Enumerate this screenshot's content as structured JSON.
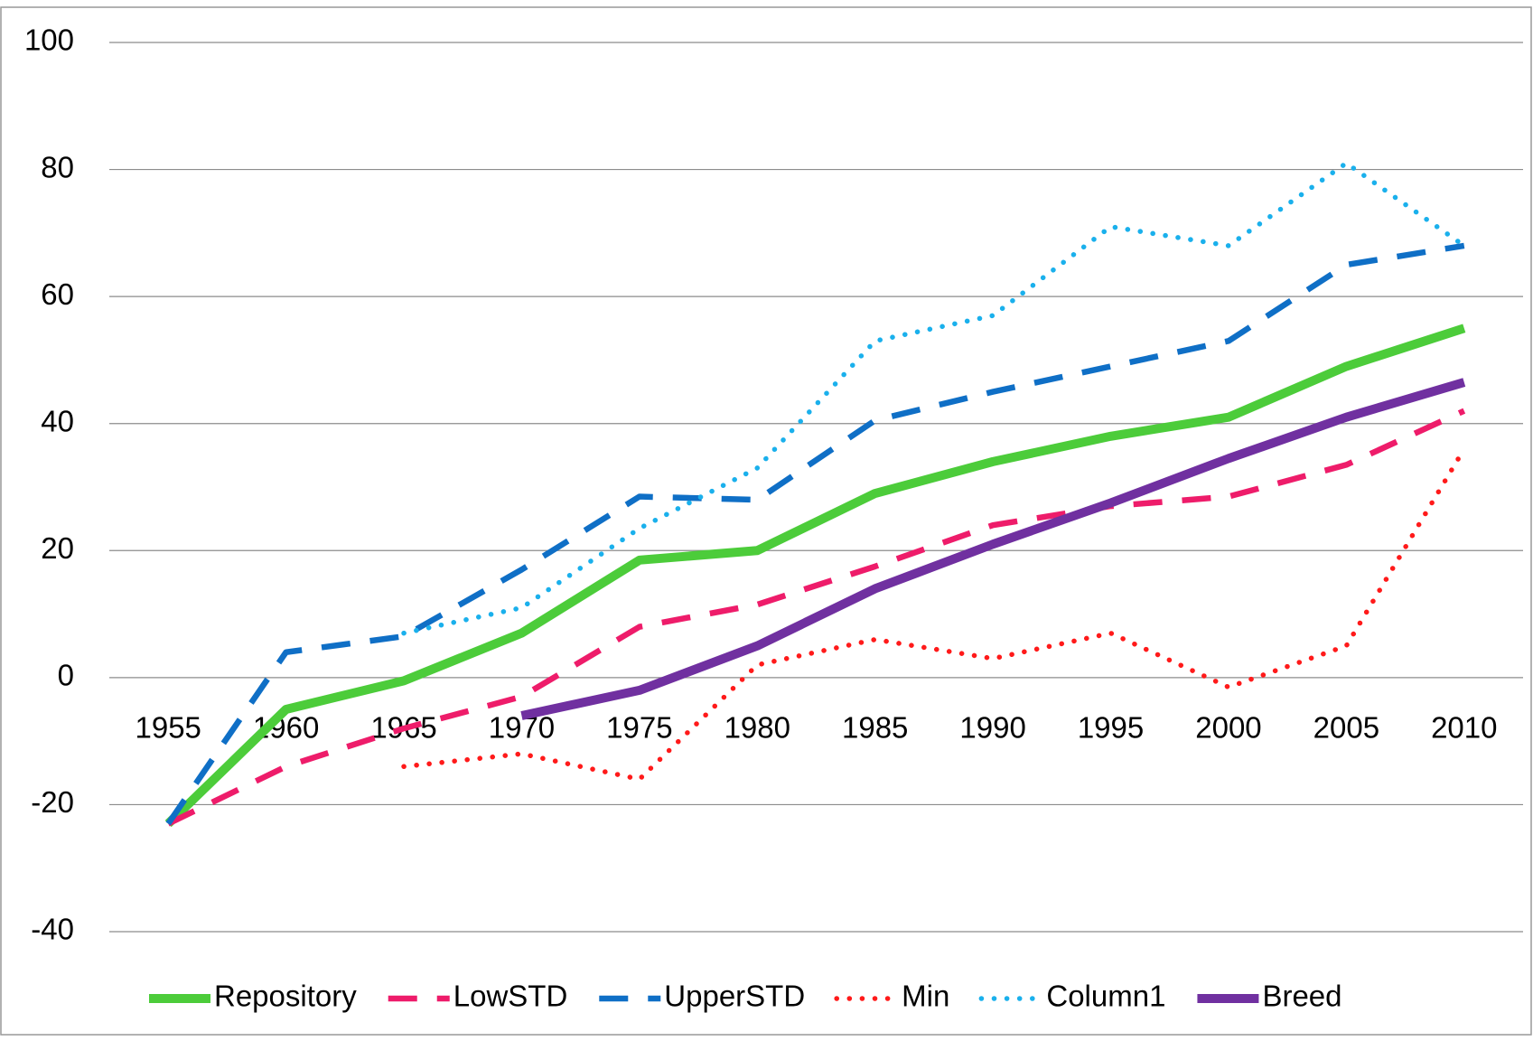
{
  "chart_data": {
    "type": "line",
    "categories": [
      "1955",
      "1960",
      "1965",
      "1970",
      "1975",
      "1980",
      "1985",
      "1990",
      "1995",
      "2000",
      "2005",
      "2010"
    ],
    "series": [
      {
        "name": "Repository",
        "color": "#4ccc3a",
        "style": "solid",
        "values": [
          -23,
          -5,
          -0.5,
          7,
          18.5,
          20,
          29,
          34,
          38,
          41,
          49,
          55
        ]
      },
      {
        "name": "LowSTD",
        "color": "#ee1c6a",
        "style": "dashed",
        "values": [
          -23,
          -14,
          -8,
          -3,
          8,
          11.5,
          17.5,
          24,
          27,
          28.5,
          33.5,
          42
        ]
      },
      {
        "name": "UpperSTD",
        "color": "#0f6fc6",
        "style": "dashed",
        "values": [
          -23,
          4,
          6.5,
          17,
          28.5,
          28,
          40.5,
          45,
          49,
          53,
          65,
          68
        ]
      },
      {
        "name": "Min",
        "color": "#ff1a1a",
        "style": "dotted",
        "values": [
          null,
          null,
          -14,
          -12,
          -16,
          2,
          6,
          3,
          7,
          -1.5,
          5,
          36
        ]
      },
      {
        "name": "Column1",
        "color": "#1ab0ec",
        "style": "dotted",
        "values": [
          null,
          null,
          7,
          11,
          23.5,
          33,
          53,
          57,
          71,
          68,
          81,
          68
        ]
      },
      {
        "name": "Breed",
        "color": "#7030a0",
        "style": "solid",
        "values": [
          null,
          null,
          null,
          -6,
          -2,
          5,
          14,
          21,
          27.5,
          34.5,
          41,
          46.5
        ]
      }
    ],
    "ylim": [
      -40,
      100
    ],
    "yticks": [
      -40,
      -20,
      0,
      20,
      40,
      60,
      80,
      100
    ],
    "grid": true,
    "legend": "bottom"
  }
}
